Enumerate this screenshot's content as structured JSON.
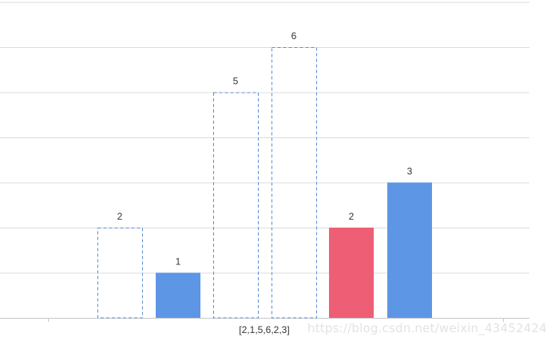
{
  "chart_data": {
    "type": "bar",
    "title": "",
    "xlabel": "",
    "ylabel": "",
    "category_label": "[2,1,5,6,2,3]",
    "ylim": [
      0,
      7
    ],
    "grid": true,
    "legend": "none",
    "bars": [
      {
        "value": 2,
        "style": "dashed-outline",
        "color": "#5b8fd6"
      },
      {
        "value": 1,
        "style": "filled",
        "color": "#5e96e6"
      },
      {
        "value": 5,
        "style": "dashed-outline",
        "color": "#5b8fd6"
      },
      {
        "value": 6,
        "style": "dashed-outline",
        "color": "#5b8fd6"
      },
      {
        "value": 2,
        "style": "filled",
        "color": "#ee5f76"
      },
      {
        "value": 3,
        "style": "filled",
        "color": "#5e96e6"
      }
    ]
  },
  "watermark": "https://blog.csdn.net/weixin_43452424",
  "colors": {
    "grid": "#dcdcdc",
    "axis": "#c8c8c8",
    "text": "#333333"
  }
}
